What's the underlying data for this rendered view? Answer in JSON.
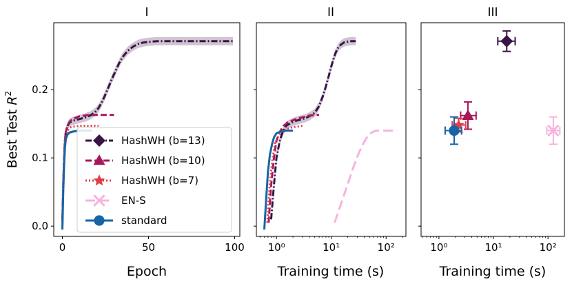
{
  "chart_data": [
    {
      "type": "line",
      "title": "I",
      "xscale": "linear",
      "xlabel": "Epoch",
      "ylabel": "Best Test R²",
      "xlim": [
        -5,
        103
      ],
      "ylim": [
        -0.015,
        0.298
      ],
      "xticks": [
        0,
        50,
        100
      ],
      "xtick_labels": [
        "0",
        "50",
        "100"
      ],
      "yticks": [
        0.0,
        0.1,
        0.2
      ],
      "ytick_labels": [
        "0.0",
        "0.1",
        "0.2"
      ],
      "legend_position": "lower-center",
      "series": [
        {
          "name": "HashWH (b=13)",
          "color": "#3b1446",
          "dash": "dashdot",
          "marker": "diamond",
          "band": 0.006,
          "x": [
            0,
            0.5,
            1,
            1.5,
            2,
            3,
            4,
            5,
            7,
            10,
            13,
            16,
            19,
            21,
            23,
            25,
            27,
            29,
            31,
            33,
            35,
            38,
            41,
            44,
            47,
            50,
            55,
            60,
            70,
            80,
            90,
            99
          ],
          "y": [
            0.01,
            0.06,
            0.1,
            0.125,
            0.138,
            0.147,
            0.151,
            0.153,
            0.155,
            0.157,
            0.159,
            0.162,
            0.167,
            0.173,
            0.182,
            0.193,
            0.205,
            0.217,
            0.228,
            0.239,
            0.248,
            0.257,
            0.263,
            0.267,
            0.269,
            0.27,
            0.271,
            0.271,
            0.271,
            0.271,
            0.271,
            0.271
          ]
        },
        {
          "name": "HashWH (b=10)",
          "color": "#a8175a",
          "dash": "dashed",
          "marker": "triangle",
          "band": 0,
          "x": [
            0,
            0.5,
            1,
            1.5,
            2,
            3,
            4,
            5,
            6,
            8,
            10,
            13,
            16,
            20,
            25,
            30
          ],
          "y": [
            0.005,
            0.06,
            0.1,
            0.125,
            0.138,
            0.147,
            0.152,
            0.155,
            0.157,
            0.159,
            0.161,
            0.162,
            0.163,
            0.163,
            0.163,
            0.163
          ]
        },
        {
          "name": "HashWH (b=7)",
          "color": "#e23b47",
          "dash": "dotted",
          "marker": "star",
          "band": 0,
          "x": [
            0,
            0.5,
            1,
            1.5,
            2,
            3,
            4,
            5,
            7,
            10,
            14,
            18,
            21
          ],
          "y": [
            0.005,
            0.06,
            0.1,
            0.122,
            0.133,
            0.14,
            0.143,
            0.145,
            0.146,
            0.147,
            0.147,
            0.147,
            0.147
          ]
        },
        {
          "name": "EN-S",
          "color": "#f7b3dd",
          "dash": "longdash",
          "marker": "x",
          "band": 0,
          "x": [
            0,
            0.5,
            1,
            1.5,
            2,
            3,
            4,
            6,
            8,
            11,
            14,
            18
          ],
          "y": [
            -0.005,
            0.05,
            0.09,
            0.115,
            0.127,
            0.133,
            0.136,
            0.138,
            0.139,
            0.14,
            0.14,
            0.14
          ]
        },
        {
          "name": "standard",
          "color": "#1565a6",
          "dash": "solid",
          "marker": "circle",
          "band": 0,
          "x": [
            0,
            0.5,
            1,
            1.5,
            2,
            3,
            4,
            5,
            7,
            10,
            13,
            17
          ],
          "y": [
            -0.005,
            0.05,
            0.09,
            0.115,
            0.128,
            0.134,
            0.137,
            0.138,
            0.139,
            0.14,
            0.14,
            0.14
          ]
        }
      ]
    },
    {
      "type": "line",
      "title": "II",
      "xscale": "log",
      "xlabel": "Training time (s)",
      "ylabel": "",
      "xlim": [
        0.43,
        230
      ],
      "ylim": [
        -0.015,
        0.298
      ],
      "xticks": [
        1,
        10,
        100
      ],
      "xtick_labels": [
        "10⁰",
        "10¹",
        "10²"
      ],
      "yticks": [
        0.0,
        0.1,
        0.2
      ],
      "ytick_labels": [
        "",
        "",
        ""
      ],
      "series": [
        {
          "name": "HashWH (b=13)",
          "color": "#3b1446",
          "dash": "dashdot",
          "band": 0.006,
          "x": [
            0.8,
            0.9,
            1.0,
            1.15,
            1.3,
            1.5,
            1.8,
            2.2,
            2.7,
            3.3,
            4.0,
            5.0,
            6.0,
            7.0,
            8.0,
            9.0,
            10.0,
            11.0,
            12.0,
            13.5,
            15,
            17,
            19,
            22,
            25,
            28
          ],
          "y": [
            0.01,
            0.06,
            0.1,
            0.125,
            0.138,
            0.147,
            0.151,
            0.154,
            0.156,
            0.158,
            0.161,
            0.166,
            0.176,
            0.19,
            0.205,
            0.22,
            0.234,
            0.245,
            0.254,
            0.262,
            0.266,
            0.269,
            0.27,
            0.271,
            0.271,
            0.271
          ]
        },
        {
          "name": "HashWH (b=10)",
          "color": "#a8175a",
          "dash": "dashed",
          "band": 0,
          "x": [
            0.72,
            0.8,
            0.9,
            1.0,
            1.15,
            1.35,
            1.6,
            2.0,
            2.5,
            3.2,
            4.0,
            5.0,
            6.0
          ],
          "y": [
            0.005,
            0.06,
            0.1,
            0.125,
            0.138,
            0.147,
            0.152,
            0.155,
            0.158,
            0.16,
            0.162,
            0.163,
            0.163
          ]
        },
        {
          "name": "HashWH (b=7)",
          "color": "#e23b47",
          "dash": "dotted",
          "band": 0,
          "x": [
            0.68,
            0.75,
            0.85,
            0.95,
            1.1,
            1.3,
            1.6,
            2.0,
            2.5,
            3.0
          ],
          "y": [
            0.005,
            0.06,
            0.1,
            0.122,
            0.133,
            0.14,
            0.143,
            0.145,
            0.146,
            0.147
          ]
        },
        {
          "name": "EN-S",
          "color": "#f7b3dd",
          "dash": "longdash",
          "band": 0,
          "x": [
            11.5,
            14,
            17,
            20,
            25,
            30,
            36,
            43,
            50,
            60,
            70,
            85,
            100,
            130,
            160
          ],
          "y": [
            0.005,
            0.025,
            0.045,
            0.062,
            0.085,
            0.102,
            0.117,
            0.128,
            0.135,
            0.139,
            0.14,
            0.14,
            0.14,
            0.14,
            0.14
          ]
        },
        {
          "name": "standard",
          "color": "#1565a6",
          "dash": "solid",
          "band": 0,
          "x": [
            0.6,
            0.65,
            0.7,
            0.76,
            0.83,
            0.9,
            1.0,
            1.15,
            1.3,
            1.5,
            1.7,
            2.0
          ],
          "y": [
            -0.005,
            0.04,
            0.08,
            0.105,
            0.12,
            0.13,
            0.136,
            0.138,
            0.139,
            0.14,
            0.14,
            0.14
          ]
        }
      ]
    },
    {
      "type": "scatter",
      "title": "III",
      "xscale": "log",
      "xlabel": "Training time (s)",
      "ylabel": "",
      "xlim": [
        0.47,
        200
      ],
      "ylim": [
        -0.015,
        0.298
      ],
      "xticks": [
        1,
        10,
        100
      ],
      "xtick_labels": [
        "10⁰",
        "10¹",
        "10²"
      ],
      "yticks": [
        0.0,
        0.1,
        0.2
      ],
      "ytick_labels": [
        "",
        "",
        ""
      ],
      "points": [
        {
          "name": "HashWH (b=13)",
          "color": "#3b1446",
          "marker": "diamond",
          "x": 17.5,
          "y": 0.271,
          "xerr": [
            12,
            25
          ],
          "yerr": 0.015
        },
        {
          "name": "HashWH (b=10)",
          "color": "#a8175a",
          "marker": "triangle",
          "x": 3.4,
          "y": 0.162,
          "xerr": [
            2.5,
            4.8
          ],
          "yerr": 0.02
        },
        {
          "name": "HashWH (b=7)",
          "color": "#e23b47",
          "marker": "star",
          "x": 2.3,
          "y": 0.148,
          "xerr": [
            1.75,
            3.1
          ],
          "yerr": 0.01
        },
        {
          "name": "EN-S",
          "color": "#f7b3dd",
          "marker": "x",
          "x": 125,
          "y": 0.14,
          "xerr": [
            95,
            165
          ],
          "yerr": 0.02
        },
        {
          "name": "standard",
          "color": "#1565a6",
          "marker": "circle",
          "x": 1.9,
          "y": 0.14,
          "xerr": [
            1.3,
            2.6
          ],
          "yerr": 0.02
        }
      ]
    }
  ]
}
